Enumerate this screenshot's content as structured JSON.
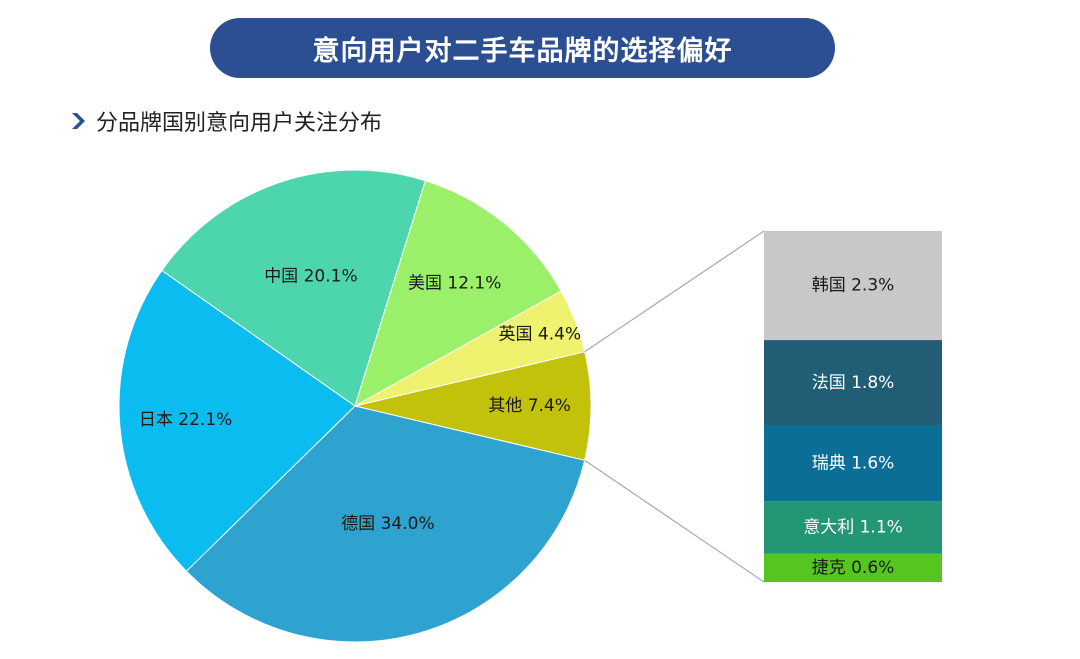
{
  "header": {
    "title": "意向用户对二手车品牌的选择偏好"
  },
  "section": {
    "subtitle": "分品牌国别意向用户关注分布"
  },
  "chart_data": {
    "type": "pie",
    "subtype": "bar-of-pie",
    "slices": [
      {
        "label": "其他 7.4%",
        "name": "其他",
        "value": 7.4,
        "color": "#c2c20a"
      },
      {
        "label": "德国 34.0%",
        "name": "德国",
        "value": 34.0,
        "color": "#2fa3d0"
      },
      {
        "label": "日本 22.1%",
        "name": "日本",
        "value": 22.1,
        "color": "#0bbcf0"
      },
      {
        "label": "中国 20.1%",
        "name": "中国",
        "value": 20.1,
        "color": "#4dd6ae"
      },
      {
        "label": "美国 12.1%",
        "name": "美国",
        "value": 12.1,
        "color": "#9bf06a"
      },
      {
        "label": "英国 4.4%",
        "name": "英国",
        "value": 4.4,
        "color": "#eef26e"
      }
    ],
    "breakdown_of": "其他",
    "breakdown": [
      {
        "label": "韩国 2.3%",
        "name": "韩国",
        "value": 2.3,
        "color": "#c8c8c8",
        "text_color": "#1a1a1a"
      },
      {
        "label": "法国 1.8%",
        "name": "法国",
        "value": 1.8,
        "color": "#225d76",
        "text_color": "#ffffff"
      },
      {
        "label": "瑞典 1.6%",
        "name": "瑞典",
        "value": 1.6,
        "color": "#0a6e96",
        "text_color": "#ffffff"
      },
      {
        "label": "意大利 1.1%",
        "name": "意大利",
        "value": 1.1,
        "color": "#239675",
        "text_color": "#ffffff"
      },
      {
        "label": "捷克 0.6%",
        "name": "捷克",
        "value": 0.6,
        "color": "#55c51f",
        "text_color": "#1a1a1a"
      }
    ]
  }
}
